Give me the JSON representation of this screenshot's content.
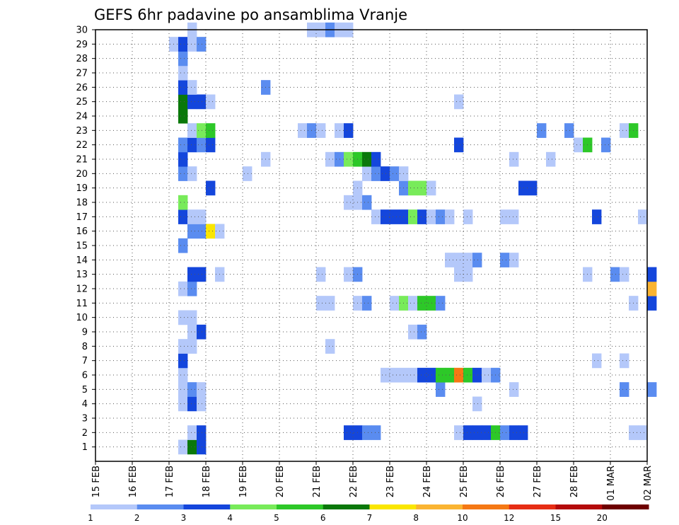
{
  "chart_data": {
    "type": "heatmap",
    "title": "GEFS 6hr padavine po ansamblima Vranje",
    "xlabel": "",
    "ylabel": "",
    "x_tick_labels": [
      "15 FEB",
      "16 FEB",
      "17 FEB",
      "18 FEB",
      "19 FEB",
      "20 FEB",
      "21 FEB",
      "22 FEB",
      "23 FEB",
      "24 FEB",
      "25 FEB",
      "26 FEB",
      "27 FEB",
      "28 FEB",
      "01 MAR",
      "02 MAR"
    ],
    "y_tick_labels": [
      "1",
      "2",
      "3",
      "4",
      "5",
      "6",
      "7",
      "8",
      "9",
      "10",
      "11",
      "12",
      "13",
      "14",
      "15",
      "16",
      "17",
      "18",
      "19",
      "20",
      "21",
      "22",
      "23",
      "24",
      "25",
      "26",
      "27",
      "28",
      "29",
      "30"
    ],
    "x_range_days": [
      0,
      15
    ],
    "y_range": [
      0,
      30
    ],
    "time_step_hours": 6,
    "grid": "dotted",
    "colorbar": {
      "labels": [
        "1",
        "2",
        "3",
        "4",
        "5",
        "6",
        "7",
        "8",
        "10",
        "12",
        "15",
        "20"
      ],
      "colors": [
        "#b4c8fa",
        "#5a8cf0",
        "#1446dc",
        "#78eb5a",
        "#2dc828",
        "#0a780a",
        "#fae600",
        "#fab432",
        "#f57814",
        "#e62d14",
        "#b40a0a",
        "#6e0000"
      ]
    },
    "series": [
      {
        "member": 1,
        "cells": [
          [
            9,
            1
          ],
          [
            10,
            6
          ],
          [
            11,
            3
          ]
        ]
      },
      {
        "member": 2,
        "cells": [
          [
            10,
            1
          ],
          [
            11,
            3
          ],
          [
            27,
            3
          ],
          [
            28,
            3
          ],
          [
            29,
            2
          ],
          [
            30,
            2
          ],
          [
            39,
            1
          ],
          [
            40,
            3
          ],
          [
            41,
            3
          ],
          [
            42,
            3
          ],
          [
            43,
            5
          ],
          [
            44,
            2
          ],
          [
            45,
            3
          ],
          [
            46,
            3
          ],
          [
            58,
            1
          ],
          [
            59,
            1
          ]
        ]
      },
      {
        "member": 4,
        "cells": [
          [
            9,
            1
          ],
          [
            10,
            3
          ],
          [
            11,
            1
          ],
          [
            41,
            1
          ]
        ]
      },
      {
        "member": 5,
        "cells": [
          [
            9,
            1
          ],
          [
            10,
            2
          ],
          [
            11,
            1
          ],
          [
            37,
            2
          ],
          [
            45,
            1
          ],
          [
            57,
            2
          ],
          [
            60,
            2
          ]
        ]
      },
      {
        "member": 6,
        "cells": [
          [
            9,
            1
          ],
          [
            31,
            1
          ],
          [
            32,
            1
          ],
          [
            33,
            1
          ],
          [
            34,
            1
          ],
          [
            35,
            3
          ],
          [
            36,
            3
          ],
          [
            37,
            5
          ],
          [
            38,
            5
          ],
          [
            39,
            9
          ],
          [
            40,
            5
          ],
          [
            41,
            3
          ],
          [
            42,
            1
          ],
          [
            43,
            2
          ]
        ]
      },
      {
        "member": 7,
        "cells": [
          [
            9,
            3
          ],
          [
            54,
            1
          ],
          [
            57,
            1
          ]
        ]
      },
      {
        "member": 8,
        "cells": [
          [
            9,
            1
          ],
          [
            10,
            1
          ],
          [
            25,
            1
          ]
        ]
      },
      {
        "member": 9,
        "cells": [
          [
            10,
            1
          ],
          [
            11,
            3
          ],
          [
            34,
            1
          ],
          [
            35,
            2
          ]
        ]
      },
      {
        "member": 10,
        "cells": [
          [
            9,
            1
          ],
          [
            10,
            1
          ]
        ]
      },
      {
        "member": 11,
        "cells": [
          [
            24,
            1
          ],
          [
            25,
            1
          ],
          [
            28,
            1
          ],
          [
            29,
            2
          ],
          [
            32,
            1
          ],
          [
            33,
            4
          ],
          [
            34,
            1
          ],
          [
            35,
            5
          ],
          [
            36,
            5
          ],
          [
            37,
            2
          ],
          [
            58,
            1
          ],
          [
            60,
            3
          ]
        ]
      },
      {
        "member": 12,
        "cells": [
          [
            9,
            1
          ],
          [
            10,
            2
          ],
          [
            60,
            8
          ]
        ]
      },
      {
        "member": 13,
        "cells": [
          [
            10,
            3
          ],
          [
            11,
            3
          ],
          [
            13,
            1
          ],
          [
            24,
            1
          ],
          [
            27,
            1
          ],
          [
            28,
            2
          ],
          [
            39,
            1
          ],
          [
            40,
            1
          ],
          [
            53,
            1
          ],
          [
            56,
            2
          ],
          [
            57,
            1
          ],
          [
            60,
            3
          ]
        ]
      },
      {
        "member": 14,
        "cells": [
          [
            38,
            1
          ],
          [
            39,
            1
          ],
          [
            40,
            1
          ],
          [
            41,
            2
          ],
          [
            44,
            2
          ],
          [
            45,
            1
          ]
        ]
      },
      {
        "member": 15,
        "cells": [
          [
            9,
            2
          ]
        ]
      },
      {
        "member": 16,
        "cells": [
          [
            10,
            2
          ],
          [
            11,
            2
          ],
          [
            12,
            7
          ],
          [
            13,
            1
          ]
        ]
      },
      {
        "member": 17,
        "cells": [
          [
            9,
            3
          ],
          [
            10,
            1
          ],
          [
            11,
            1
          ],
          [
            30,
            1
          ],
          [
            31,
            3
          ],
          [
            32,
            3
          ],
          [
            33,
            3
          ],
          [
            34,
            4
          ],
          [
            35,
            3
          ],
          [
            36,
            1
          ],
          [
            37,
            2
          ],
          [
            38,
            1
          ],
          [
            40,
            1
          ],
          [
            44,
            1
          ],
          [
            45,
            1
          ],
          [
            54,
            3
          ],
          [
            59,
            1
          ]
        ]
      },
      {
        "member": 18,
        "cells": [
          [
            9,
            4
          ],
          [
            27,
            1
          ],
          [
            28,
            1
          ],
          [
            29,
            2
          ]
        ]
      },
      {
        "member": 19,
        "cells": [
          [
            12,
            3
          ],
          [
            28,
            1
          ],
          [
            33,
            2
          ],
          [
            34,
            4
          ],
          [
            35,
            4
          ],
          [
            36,
            1
          ],
          [
            46,
            3
          ],
          [
            47,
            3
          ]
        ]
      },
      {
        "member": 20,
        "cells": [
          [
            9,
            2
          ],
          [
            10,
            1
          ],
          [
            16,
            1
          ],
          [
            29,
            1
          ],
          [
            30,
            2
          ],
          [
            31,
            3
          ],
          [
            32,
            2
          ],
          [
            33,
            1
          ]
        ]
      },
      {
        "member": 21,
        "cells": [
          [
            9,
            3
          ],
          [
            18,
            1
          ],
          [
            25,
            1
          ],
          [
            26,
            2
          ],
          [
            27,
            4
          ],
          [
            28,
            5
          ],
          [
            29,
            6
          ],
          [
            30,
            3
          ],
          [
            45,
            1
          ],
          [
            49,
            1
          ]
        ]
      },
      {
        "member": 22,
        "cells": [
          [
            9,
            2
          ],
          [
            10,
            3
          ],
          [
            11,
            2
          ],
          [
            12,
            3
          ],
          [
            39,
            3
          ],
          [
            52,
            1
          ],
          [
            53,
            5
          ],
          [
            55,
            2
          ]
        ]
      },
      {
        "member": 23,
        "cells": [
          [
            10,
            1
          ],
          [
            11,
            4
          ],
          [
            12,
            5
          ],
          [
            22,
            1
          ],
          [
            23,
            2
          ],
          [
            24,
            1
          ],
          [
            26,
            1
          ],
          [
            27,
            3
          ],
          [
            48,
            2
          ],
          [
            51,
            2
          ],
          [
            57,
            1
          ],
          [
            58,
            5
          ]
        ]
      },
      {
        "member": 24,
        "cells": [
          [
            9,
            6
          ]
        ]
      },
      {
        "member": 25,
        "cells": [
          [
            9,
            6
          ],
          [
            10,
            3
          ],
          [
            11,
            3
          ],
          [
            12,
            1
          ],
          [
            39,
            1
          ]
        ]
      },
      {
        "member": 26,
        "cells": [
          [
            9,
            3
          ],
          [
            10,
            1
          ],
          [
            18,
            2
          ]
        ]
      },
      {
        "member": 27,
        "cells": [
          [
            9,
            1
          ]
        ]
      },
      {
        "member": 28,
        "cells": [
          [
            9,
            2
          ]
        ]
      },
      {
        "member": 29,
        "cells": [
          [
            8,
            1
          ],
          [
            9,
            3
          ],
          [
            10,
            1
          ],
          [
            11,
            2
          ]
        ]
      },
      {
        "member": 30,
        "cells": [
          [
            10,
            1
          ],
          [
            23,
            1
          ],
          [
            24,
            1
          ],
          [
            25,
            2
          ],
          [
            26,
            1
          ],
          [
            27,
            1
          ]
        ]
      }
    ]
  }
}
